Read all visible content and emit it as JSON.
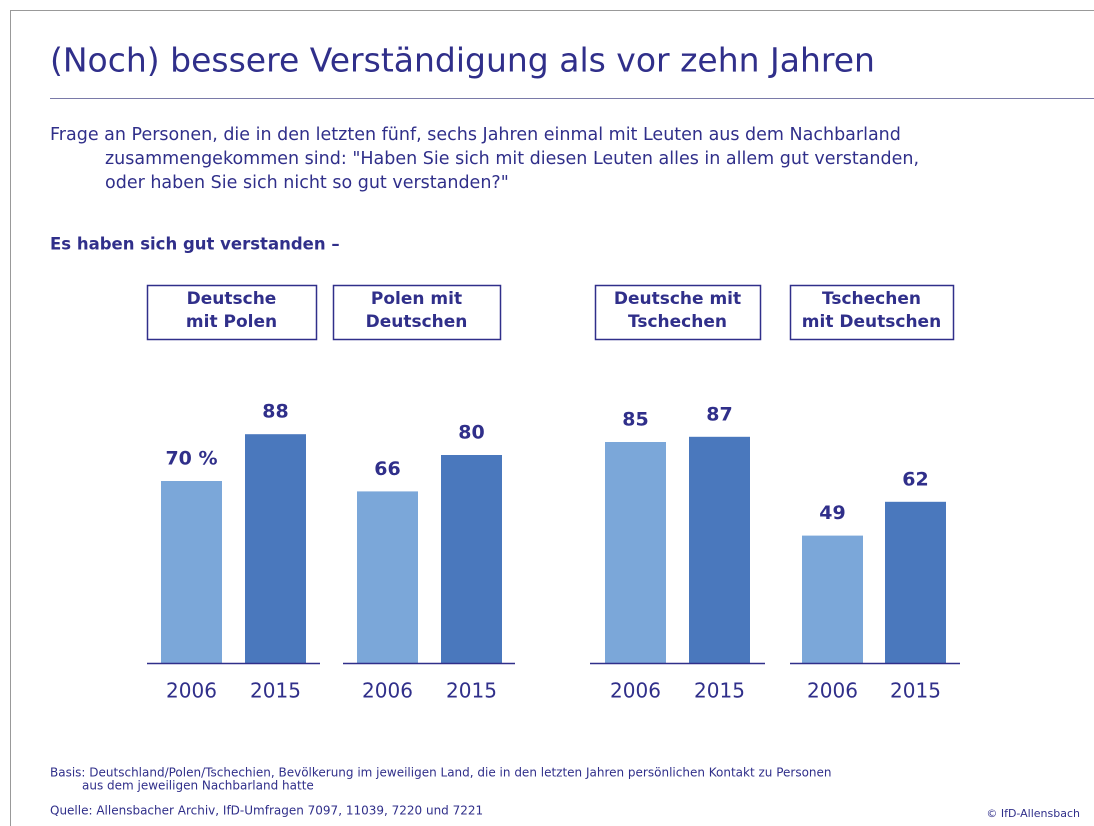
{
  "title": "(Noch) bessere Verständigung als vor zehn Jahren",
  "question": [
    "Frage an Personen, die in den letzten fünf, sechs Jahren einmal mit Leuten aus dem Nachbarland",
    "zusammengekommen sind: \"Haben Sie sich mit diesen Leuten alles in allem gut verstanden,",
    "oder haben Sie sich nicht so gut verstanden?\""
  ],
  "subheading": "Es haben sich gut verstanden –",
  "basis": [
    "Basis: Deutschland/Polen/Tschechien, Bevölkerung im jeweiligen Land, die in den letzten Jahren persönlichen Kontakt zu Personen",
    "aus dem jeweiligen Nachbarland hatte"
  ],
  "source": "Quelle: Allensbacher Archiv, IfD-Umfragen 7097, 11039, 7220 und 7221",
  "copyright": "© IfD-Allensbach",
  "chart_data": [
    {
      "type": "bar",
      "title": [
        "Deutsche",
        "mit Polen"
      ],
      "categories": [
        "2006",
        "2015"
      ],
      "values": [
        70,
        88
      ],
      "value_labels": [
        "70 %",
        "88"
      ],
      "colors": [
        "#7ba7d9",
        "#4a78bd"
      ]
    },
    {
      "type": "bar",
      "title": [
        "Polen mit",
        "Deutschen"
      ],
      "categories": [
        "2006",
        "2015"
      ],
      "values": [
        66,
        80
      ],
      "colors": [
        "#7ba7d9",
        "#4a78bd"
      ]
    },
    {
      "type": "bar",
      "title": [
        "Deutsche mit",
        "Tschechen"
      ],
      "categories": [
        "2006",
        "2015"
      ],
      "values": [
        85,
        87
      ],
      "colors": [
        "#7ba7d9",
        "#4a78bd"
      ]
    },
    {
      "type": "bar",
      "title": [
        "Tschechen",
        "mit Deutschen"
      ],
      "categories": [
        "2006",
        "2015"
      ],
      "values": [
        49,
        62
      ],
      "colors": [
        "#7ba7d9",
        "#4a78bd"
      ]
    }
  ]
}
